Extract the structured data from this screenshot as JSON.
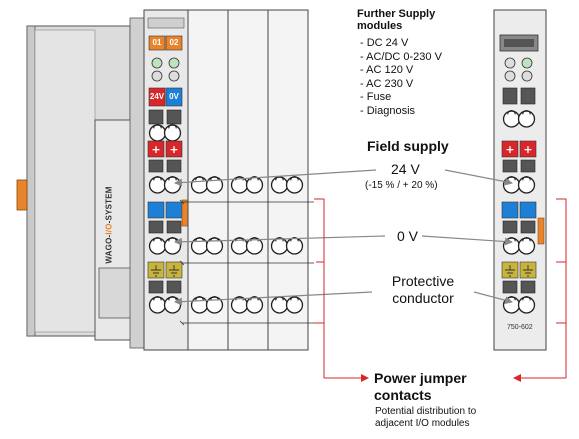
{
  "further_supply": {
    "title_line1": "Further Supply",
    "title_line2": "modules",
    "items": [
      "DC 24 V",
      "AC/DC 0-230 V",
      "AC 120 V",
      "AC 230 V",
      "Fuse",
      "Diagnosis"
    ]
  },
  "field_supply": {
    "heading": "Field supply",
    "v24_label": "24 V",
    "v24_tolerance": "(-15 % / + 20 %)",
    "v0_label": "0 V",
    "protective_label": "Protective conductor"
  },
  "power_jumper": {
    "heading": "Power jumper contacts",
    "description": "Potential distribution to adjacent I/O modules"
  },
  "coupler": {
    "brand_prefix": "WAGO",
    "brand_io": "I/O",
    "brand_suffix": "SYSTEM",
    "badge_01": "01",
    "badge_02": "02",
    "badge_24v": "24V",
    "badge_0v": "0V"
  },
  "module_part_number": "750-602",
  "colors": {
    "plus_red": "#d9262b",
    "minus_blue": "#1e7fd6",
    "earth_yellow": "#c8b43c",
    "arrow_red": "#d9262b",
    "accent_orange": "#e8842b"
  },
  "icons": [
    "plus-terminal-icon",
    "minus-terminal-icon",
    "earth-terminal-icon",
    "led-icon",
    "arrow-icon"
  ]
}
